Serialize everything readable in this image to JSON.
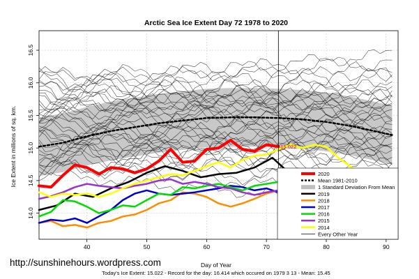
{
  "chart_data": {
    "type": "line",
    "title": "Arctic Sea Ice Extent Day 72 1978 to 2020",
    "xlabel": "Day of Year",
    "ylabel": "Ice Extent in millions of sq. km.",
    "xlim": [
      32,
      92
    ],
    "ylim": [
      13.6,
      16.8
    ],
    "x_ticks": [
      "40",
      "50",
      "60",
      "70",
      "80",
      "90"
    ],
    "y_ticks": [
      "14.0",
      "14.5",
      "15.0",
      "15.5",
      "16.0",
      "16.5"
    ],
    "marker_day": 72,
    "marker_label": "15.022",
    "watermark": "http://sunshinehours.wordpress.com",
    "footer": "Today's Ice Extent: 15.022 - Record for the day: 16.414 which occured on 1979 3 13 - Mean: 15.45",
    "grid": true,
    "legend_position": "bottom-right",
    "legend": [
      {
        "label": "2020",
        "color": "#ff0000",
        "width": 4
      },
      {
        "label": "Mean 1981-2010",
        "color": "#000000",
        "width": 2.5,
        "dashed": true
      },
      {
        "label": "1 Standard Deviation From Mean",
        "color": "#bebebe",
        "width": 6
      },
      {
        "label": "2019",
        "color": "#000000",
        "width": 2.5
      },
      {
        "label": "2018",
        "color": "#ff8c00",
        "width": 2.5
      },
      {
        "label": "2017",
        "color": "#0000cd",
        "width": 2.5
      },
      {
        "label": "2016",
        "color": "#00dd00",
        "width": 2.5
      },
      {
        "label": "2015",
        "color": "#9932cc",
        "width": 2.5
      },
      {
        "label": "2014",
        "color": "#ffff00",
        "width": 2.5
      },
      {
        "label": "Every Other Year",
        "color": "#000000",
        "width": 0.8
      }
    ],
    "series": [
      {
        "name": "2020",
        "color": "#ff0000",
        "x": [
          32,
          34,
          36,
          38,
          40,
          42,
          44,
          46,
          48,
          50,
          52,
          54,
          56,
          58,
          60,
          62,
          64,
          66,
          68,
          70,
          72
        ],
        "y": [
          14.42,
          14.4,
          14.58,
          14.74,
          14.7,
          14.6,
          14.7,
          14.68,
          14.62,
          14.68,
          14.8,
          14.98,
          14.78,
          14.8,
          14.98,
          15.0,
          15.12,
          14.98,
          14.95,
          15.05,
          15.022
        ]
      },
      {
        "name": "Mean 1981-2010",
        "color": "#000000",
        "dashed": true,
        "x": [
          32,
          36,
          40,
          44,
          48,
          52,
          56,
          60,
          64,
          68,
          72,
          76,
          80,
          84,
          88,
          91
        ],
        "y": [
          15.02,
          15.08,
          15.18,
          15.26,
          15.32,
          15.38,
          15.42,
          15.46,
          15.47,
          15.47,
          15.46,
          15.44,
          15.4,
          15.34,
          15.26,
          15.2
        ]
      },
      {
        "name": "2019",
        "color": "#000000",
        "x": [
          32,
          35,
          38,
          41,
          44,
          47,
          50,
          53,
          56,
          59,
          62,
          65,
          68,
          71,
          74,
          77,
          80,
          83,
          86,
          88,
          90,
          91
        ],
        "y": [
          14.05,
          14.12,
          14.3,
          14.25,
          14.38,
          14.48,
          14.62,
          14.72,
          14.65,
          14.55,
          14.6,
          14.62,
          14.7,
          14.85,
          14.6,
          14.55,
          14.5,
          14.45,
          14.3,
          14.05,
          14.03,
          14.03
        ]
      },
      {
        "name": "2018",
        "color": "#ff8c00",
        "x": [
          32,
          34,
          36,
          38,
          40,
          42,
          44,
          46,
          48,
          50,
          52,
          54,
          56,
          58,
          60,
          62,
          64,
          66,
          68,
          70,
          72,
          74,
          76,
          78,
          80,
          82,
          84,
          86,
          88,
          90,
          91
        ],
        "y": [
          13.85,
          13.88,
          13.8,
          13.82,
          13.78,
          13.85,
          13.88,
          13.95,
          13.98,
          14.05,
          14.15,
          14.2,
          14.32,
          14.3,
          14.25,
          14.15,
          14.1,
          14.15,
          14.22,
          14.3,
          14.35,
          14.42,
          14.5,
          14.4,
          14.3,
          14.25,
          14.05,
          14.0,
          13.95,
          14.0,
          14.05
        ]
      },
      {
        "name": "2017",
        "color": "#0000cd",
        "x": [
          32,
          34,
          36,
          38,
          40,
          42,
          44,
          46,
          48,
          50,
          52,
          54,
          56,
          58,
          60,
          62,
          64,
          66,
          68,
          70,
          72,
          74,
          76,
          78,
          80,
          82,
          84,
          86,
          88,
          90,
          91
        ],
        "y": [
          13.85,
          13.9,
          13.88,
          13.92,
          13.85,
          13.95,
          14.05,
          14.2,
          14.3,
          14.35,
          14.3,
          14.28,
          14.3,
          14.32,
          14.35,
          14.38,
          14.42,
          14.4,
          14.35,
          14.38,
          14.32,
          14.3,
          14.25,
          14.2,
          14.22,
          14.15,
          14.18,
          14.25,
          14.28,
          14.3,
          14.28
        ]
      },
      {
        "name": "2016",
        "color": "#00dd00",
        "x": [
          32,
          34,
          36,
          38,
          40,
          42,
          44,
          46,
          48,
          50,
          52,
          54,
          56,
          58,
          60,
          62,
          64,
          66,
          68,
          70,
          72,
          74,
          76,
          78,
          80,
          82,
          84,
          86,
          88,
          90,
          91
        ],
        "y": [
          13.95,
          14.02,
          14.2,
          14.18,
          14.1,
          14.0,
          14.05,
          14.12,
          14.1,
          14.2,
          14.3,
          14.28,
          14.4,
          14.38,
          14.42,
          14.45,
          14.4,
          14.35,
          14.42,
          14.45,
          14.48,
          14.5,
          14.45,
          14.48,
          14.5,
          14.55,
          14.5,
          14.45,
          14.4,
          14.35,
          14.25
        ]
      },
      {
        "name": "2015",
        "color": "#9932cc",
        "x": [
          32,
          34,
          36,
          38,
          40,
          42,
          44,
          46,
          48,
          50,
          52,
          54,
          56,
          58,
          60,
          62,
          64,
          66,
          68,
          70,
          72,
          74,
          76,
          78,
          80,
          82,
          84,
          86,
          88,
          90,
          91
        ],
        "y": [
          14.22,
          14.26,
          14.32,
          14.4,
          14.45,
          14.42,
          14.4,
          14.38,
          14.42,
          14.45,
          14.5,
          14.52,
          14.45,
          14.48,
          14.45,
          14.4,
          14.38,
          14.32,
          14.28,
          14.32,
          14.35,
          14.4,
          14.42,
          14.45,
          14.4,
          14.35,
          14.3,
          14.35,
          14.38,
          14.4,
          14.3
        ]
      },
      {
        "name": "2014",
        "color": "#ffff00",
        "x": [
          32,
          34,
          36,
          38,
          40,
          42,
          44,
          46,
          48,
          50,
          52,
          54,
          56,
          58,
          60,
          62,
          64,
          66,
          68,
          70,
          72,
          74,
          76,
          78,
          80,
          82,
          84,
          86,
          88,
          90,
          91
        ],
        "y": [
          14.32,
          14.25,
          14.3,
          14.28,
          14.3,
          14.25,
          14.3,
          14.38,
          14.45,
          14.5,
          14.55,
          14.6,
          14.58,
          14.65,
          14.72,
          14.78,
          14.7,
          14.82,
          14.88,
          14.9,
          14.98,
          15.05,
          15.0,
          15.05,
          15.02,
          14.85,
          14.72,
          14.6,
          14.5,
          14.55,
          14.5
        ]
      }
    ]
  }
}
